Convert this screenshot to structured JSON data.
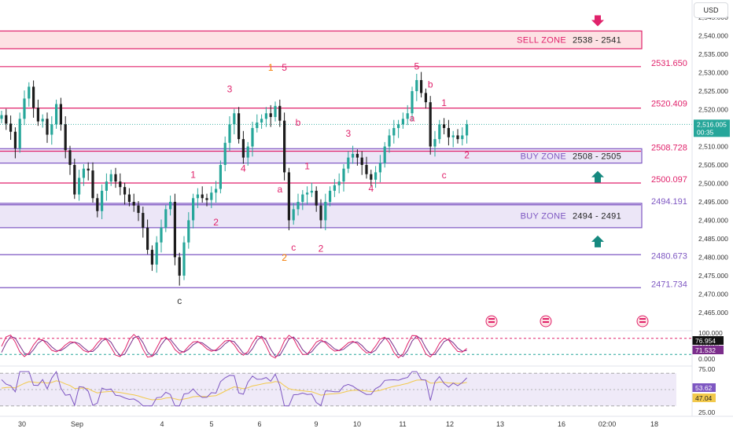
{
  "currency_button": "USD",
  "chart_data": {
    "type": "candlestick",
    "y_axis_ticks": [
      "2,545.000",
      "2,540.000",
      "2,535.000",
      "2,530.000",
      "2,525.000",
      "2,520.000",
      "2,515.000",
      "2,510.000",
      "2,505.000",
      "2,500.000",
      "2,495.000",
      "2,490.000",
      "2,485.000",
      "2,480.000",
      "2,475.000",
      "2,470.000",
      "2,465.000"
    ],
    "ylim": [
      2462,
      2548
    ],
    "x_axis_labels": [
      "30",
      "Sep",
      "4",
      "5",
      "6",
      "9",
      "10",
      "11",
      "12",
      "13",
      "16",
      "02:00",
      "18"
    ],
    "current_price": {
      "value": 2516.005,
      "label": "2,516.005",
      "countdown": "00:35"
    },
    "levels": [
      {
        "value": 2531.65,
        "label": "2531.650",
        "color": "#e0226b"
      },
      {
        "value": 2520.409,
        "label": "2520.409",
        "color": "#e0226b"
      },
      {
        "value": 2508.728,
        "label": "2508.728",
        "color": "#e0226b"
      },
      {
        "value": 2500.097,
        "label": "2500.097",
        "color": "#e0226b"
      },
      {
        "value": 2494.191,
        "label": "2494.191",
        "color": "#7e57c2"
      },
      {
        "value": 2480.673,
        "label": "2480.673",
        "color": "#7e57c2"
      },
      {
        "value": 2471.734,
        "label": "2471.734",
        "color": "#7e57c2"
      }
    ],
    "zones": [
      {
        "name": "SELL ZONE",
        "range": "2538 - 2541",
        "low": 2536.5,
        "high": 2541.3,
        "fill": "#fde2e4",
        "stroke": "#e0226b",
        "arrow": "down"
      },
      {
        "name": "BUY ZONE",
        "range": "2508 - 2505",
        "low": 2505.5,
        "high": 2509.4,
        "fill": "#ece6f7",
        "stroke": "#7e57c2",
        "arrow": "up"
      },
      {
        "name": "BUY ZONE",
        "range": "2494 - 2491",
        "low": 2488.0,
        "high": 2494.6,
        "fill": "#ece6f7",
        "stroke": "#7e57c2",
        "arrow": "up"
      }
    ],
    "wave_labels": [
      {
        "text": "3",
        "idx": 50,
        "price": 2524.7,
        "color": "#e0226b"
      },
      {
        "text": "4",
        "idx": 53,
        "price": 2503.2,
        "color": "#e0226b"
      },
      {
        "text": "1",
        "idx": 59,
        "price": 2530.5,
        "color": "#f57c00"
      },
      {
        "text": "5",
        "idx": 62,
        "price": 2530.5,
        "color": "#e0226b"
      },
      {
        "text": "b",
        "idx": 65,
        "price": 2515.6,
        "color": "#e0226b"
      },
      {
        "text": "a",
        "idx": 61,
        "price": 2497.6,
        "color": "#e0226b"
      },
      {
        "text": "c",
        "idx": 64,
        "price": 2481.8,
        "color": "#e0226b"
      },
      {
        "text": "2",
        "idx": 62,
        "price": 2479.0,
        "color": "#f57c00"
      },
      {
        "text": "1",
        "idx": 67,
        "price": 2503.8,
        "color": "#e0226b"
      },
      {
        "text": "2",
        "idx": 70,
        "price": 2481.5,
        "color": "#e0226b"
      },
      {
        "text": "3",
        "idx": 76,
        "price": 2512.7,
        "color": "#e0226b"
      },
      {
        "text": "4",
        "idx": 81,
        "price": 2497.8,
        "color": "#e0226b"
      },
      {
        "text": "5",
        "idx": 91,
        "price": 2530.9,
        "color": "#e0226b"
      },
      {
        "text": "a",
        "idx": 90,
        "price": 2516.8,
        "color": "#e0226b"
      },
      {
        "text": "b",
        "idx": 94,
        "price": 2526.0,
        "color": "#e0226b"
      },
      {
        "text": "1",
        "idx": 97,
        "price": 2521.0,
        "color": "#e0226b"
      },
      {
        "text": "c",
        "idx": 97,
        "price": 2501.4,
        "color": "#e0226b"
      },
      {
        "text": "2",
        "idx": 102,
        "price": 2506.8,
        "color": "#e0226b"
      },
      {
        "text": "1",
        "idx": 42,
        "price": 2501.5,
        "color": "#e0226b"
      },
      {
        "text": "2",
        "idx": 47,
        "price": 2488.6,
        "color": "#e0226b"
      },
      {
        "text": "c",
        "idx": 39,
        "price": 2467.3,
        "color": "#333333"
      }
    ],
    "closes": [
      2518.5,
      2516.2,
      2514.0,
      2509.5,
      2517.5,
      2523.0,
      2526.2,
      2520.5,
      2516.8,
      2517.5,
      2513.2,
      2516.0,
      2521.5,
      2516.0,
      2509.0,
      2505.0,
      2497.0,
      2501.5,
      2504.0,
      2503.5,
      2496.0,
      2492.5,
      2498.0,
      2500.5,
      2502.5,
      2500.5,
      2499.0,
      2497.0,
      2495.0,
      2494.0,
      2492.0,
      2488.0,
      2482.0,
      2478.0,
      2484.0,
      2488.0,
      2493.0,
      2495.0,
      2480.0,
      2475.0,
      2484.0,
      2490.0,
      2496.0,
      2497.0,
      2496.0,
      2495.5,
      2497.5,
      2498.5,
      2505.0,
      2511.0,
      2516.0,
      2519.0,
      2512.0,
      2507.0,
      2510.0,
      2515.0,
      2516.5,
      2517.5,
      2519.0,
      2518.0,
      2521.0,
      2517.0,
      2503.0,
      2490.0,
      2493.0,
      2495.0,
      2497.0,
      2497.5,
      2498.0,
      2494.0,
      2490.0,
      2495.0,
      2498.0,
      2499.5,
      2500.5,
      2504.0,
      2507.0,
      2508.0,
      2507.0,
      2505.0,
      2502.5,
      2501.0,
      2503.0,
      2505.5,
      2510.0,
      2513.0,
      2515.0,
      2516.0,
      2517.5,
      2519.0,
      2525.0,
      2528.0,
      2524.5,
      2522.0,
      2510.0,
      2512.0,
      2516.0,
      2515.0,
      2512.5,
      2513.0,
      2512.0,
      2513.0,
      2516.0
    ],
    "stoch": {
      "ticks": [
        "100.000",
        "50.000",
        "0.000"
      ],
      "ylim": [
        0,
        100
      ],
      "k_label": "76.954",
      "d_label": "71.532",
      "k_color": "#e0226b",
      "d_color": "#7b2d8b"
    },
    "rsi": {
      "ticks": [
        "75.00",
        "50.00",
        "25.00"
      ],
      "ylim": [
        25,
        75
      ],
      "rsi_label": "53.62",
      "ma_label": "47.04",
      "rsi_color": "#7e57c2",
      "ma_color": "#f2c94c"
    }
  }
}
